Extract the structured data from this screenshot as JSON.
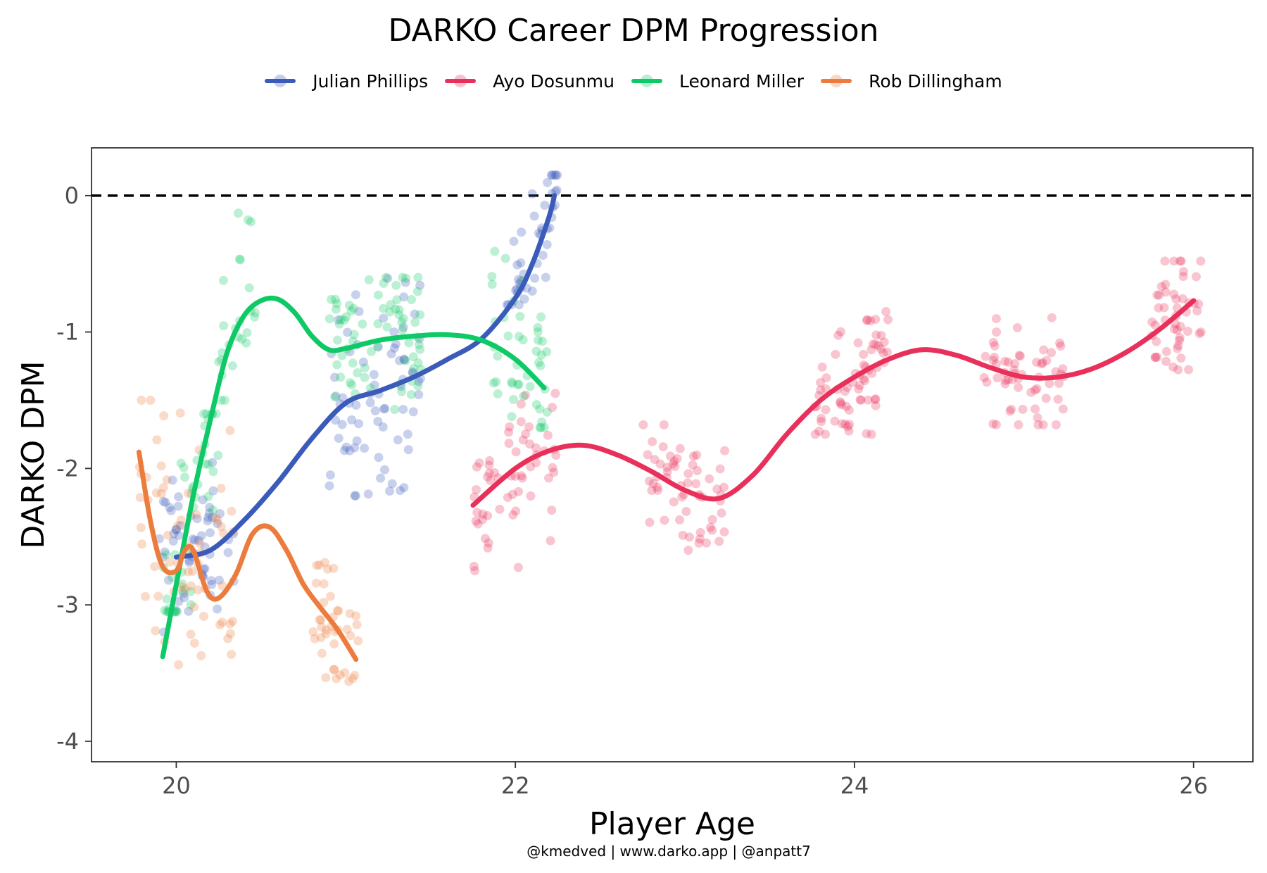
{
  "chart_data": {
    "type": "scatter",
    "title": "DARKO Career DPM Progression",
    "xlabel": "Player Age",
    "ylabel": "DARKO DPM",
    "xlim": [
      19.5,
      26.35
    ],
    "ylim": [
      -4.15,
      0.35
    ],
    "x_ticks": [
      20,
      22,
      24,
      26
    ],
    "y_ticks": [
      0,
      -1,
      -2,
      -3,
      -4
    ],
    "reference_line": {
      "y": 0,
      "style": "dashed"
    },
    "legend_position": "top",
    "grid": false,
    "caption": "@kmedved | www.darko.app | @anpatt7",
    "series": [
      {
        "name": "Julian Phillips",
        "color": "#3a5bba",
        "smooth": [
          [
            20.0,
            -2.65
          ],
          [
            20.2,
            -2.6
          ],
          [
            20.4,
            -2.38
          ],
          [
            20.6,
            -2.1
          ],
          [
            20.8,
            -1.78
          ],
          [
            21.0,
            -1.52
          ],
          [
            21.2,
            -1.43
          ],
          [
            21.4,
            -1.33
          ],
          [
            21.6,
            -1.2
          ],
          [
            21.8,
            -1.05
          ],
          [
            22.0,
            -0.75
          ],
          [
            22.1,
            -0.5
          ],
          [
            22.2,
            -0.15
          ],
          [
            22.23,
            0.0
          ]
        ],
        "clusters": [
          {
            "x": [
              19.88,
              20.35
            ],
            "y": [
              -3.2,
              -1.95
            ],
            "n": 60
          },
          {
            "x": [
              20.9,
              21.45
            ],
            "y": [
              -2.2,
              -0.5
            ],
            "n": 75
          },
          {
            "x": [
              21.95,
              22.25
            ],
            "y": [
              -0.8,
              0.15
            ],
            "n": 45
          }
        ]
      },
      {
        "name": "Ayo Dosunmu",
        "color": "#e8305a",
        "smooth": [
          [
            21.75,
            -2.27
          ],
          [
            22.0,
            -2.0
          ],
          [
            22.2,
            -1.87
          ],
          [
            22.4,
            -1.83
          ],
          [
            22.6,
            -1.9
          ],
          [
            22.8,
            -2.02
          ],
          [
            23.0,
            -2.16
          ],
          [
            23.2,
            -2.22
          ],
          [
            23.4,
            -2.05
          ],
          [
            23.6,
            -1.75
          ],
          [
            23.8,
            -1.5
          ],
          [
            24.0,
            -1.33
          ],
          [
            24.2,
            -1.2
          ],
          [
            24.4,
            -1.13
          ],
          [
            24.6,
            -1.17
          ],
          [
            24.8,
            -1.26
          ],
          [
            25.0,
            -1.33
          ],
          [
            25.2,
            -1.33
          ],
          [
            25.4,
            -1.27
          ],
          [
            25.6,
            -1.15
          ],
          [
            25.8,
            -0.98
          ],
          [
            26.0,
            -0.77
          ]
        ],
        "clusters": [
          {
            "x": [
              21.75,
              22.25
            ],
            "y": [
              -2.75,
              -1.45
            ],
            "n": 60
          },
          {
            "x": [
              22.75,
              23.25
            ],
            "y": [
              -2.6,
              -1.68
            ],
            "n": 60
          },
          {
            "x": [
              23.75,
              24.2
            ],
            "y": [
              -1.75,
              -0.85
            ],
            "n": 70
          },
          {
            "x": [
              24.75,
              25.25
            ],
            "y": [
              -1.68,
              -0.85
            ],
            "n": 60
          },
          {
            "x": [
              25.75,
              26.05
            ],
            "y": [
              -1.47,
              -0.48
            ],
            "n": 50
          }
        ]
      },
      {
        "name": "Leonard Miller",
        "color": "#0dc966",
        "smooth": [
          [
            19.92,
            -3.38
          ],
          [
            20.0,
            -2.85
          ],
          [
            20.1,
            -2.2
          ],
          [
            20.2,
            -1.65
          ],
          [
            20.3,
            -1.15
          ],
          [
            20.4,
            -0.88
          ],
          [
            20.5,
            -0.77
          ],
          [
            20.6,
            -0.76
          ],
          [
            20.7,
            -0.86
          ],
          [
            20.8,
            -1.03
          ],
          [
            20.9,
            -1.13
          ],
          [
            21.0,
            -1.12
          ],
          [
            21.2,
            -1.06
          ],
          [
            21.4,
            -1.03
          ],
          [
            21.6,
            -1.02
          ],
          [
            21.8,
            -1.06
          ],
          [
            22.0,
            -1.2
          ],
          [
            22.17,
            -1.41
          ]
        ],
        "clusters": [
          {
            "x": [
              19.9,
              20.25
            ],
            "y": [
              -3.05,
              -1.6
            ],
            "n": 45
          },
          {
            "x": [
              20.25,
              20.5
            ],
            "y": [
              -1.5,
              -0.05
            ],
            "n": 25
          },
          {
            "x": [
              20.9,
              21.45
            ],
            "y": [
              -1.85,
              -0.6
            ],
            "n": 70
          },
          {
            "x": [
              21.85,
              22.2
            ],
            "y": [
              -1.7,
              -0.3
            ],
            "n": 45
          }
        ]
      },
      {
        "name": "Rob Dillingham",
        "color": "#ec7c3e",
        "smooth": [
          [
            19.78,
            -1.88
          ],
          [
            19.85,
            -2.4
          ],
          [
            19.92,
            -2.72
          ],
          [
            20.0,
            -2.75
          ],
          [
            20.05,
            -2.6
          ],
          [
            20.1,
            -2.6
          ],
          [
            20.18,
            -2.9
          ],
          [
            20.25,
            -2.95
          ],
          [
            20.35,
            -2.78
          ],
          [
            20.45,
            -2.48
          ],
          [
            20.55,
            -2.43
          ],
          [
            20.65,
            -2.6
          ],
          [
            20.75,
            -2.85
          ],
          [
            20.85,
            -3.02
          ],
          [
            20.95,
            -3.18
          ],
          [
            21.06,
            -3.4
          ]
        ],
        "clusters": [
          {
            "x": [
              19.78,
              20.35
            ],
            "y": [
              -3.95,
              -1.5
            ],
            "n": 65
          },
          {
            "x": [
              20.8,
              21.08
            ],
            "y": [
              -3.7,
              -2.55
            ],
            "n": 40
          }
        ]
      }
    ]
  }
}
